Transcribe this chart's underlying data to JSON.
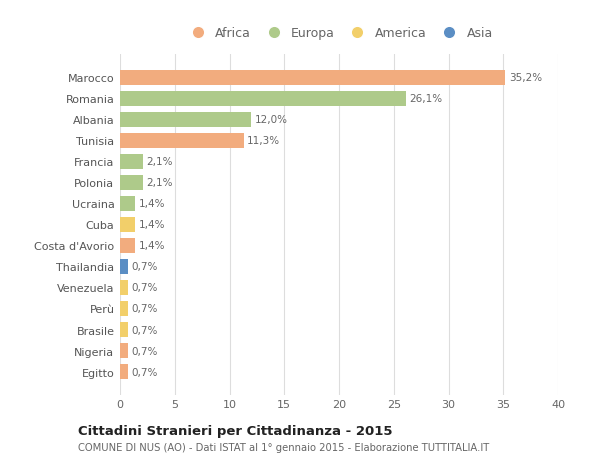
{
  "countries": [
    "Marocco",
    "Romania",
    "Albania",
    "Tunisia",
    "Francia",
    "Polonia",
    "Ucraina",
    "Cuba",
    "Costa d'Avorio",
    "Thailandia",
    "Venezuela",
    "Perù",
    "Brasile",
    "Nigeria",
    "Egitto"
  ],
  "values": [
    35.2,
    26.1,
    12.0,
    11.3,
    2.1,
    2.1,
    1.4,
    1.4,
    1.4,
    0.7,
    0.7,
    0.7,
    0.7,
    0.7,
    0.7
  ],
  "labels": [
    "35,2%",
    "26,1%",
    "12,0%",
    "11,3%",
    "2,1%",
    "2,1%",
    "1,4%",
    "1,4%",
    "1,4%",
    "0,7%",
    "0,7%",
    "0,7%",
    "0,7%",
    "0,7%",
    "0,7%"
  ],
  "continents": [
    "Africa",
    "Europa",
    "Europa",
    "Africa",
    "Europa",
    "Europa",
    "Europa",
    "America",
    "Africa",
    "Asia",
    "America",
    "America",
    "America",
    "Africa",
    "Africa"
  ],
  "colors": {
    "Africa": "#F2AC7E",
    "Europa": "#AECA8A",
    "America": "#F2CF6A",
    "Asia": "#5B8EC4"
  },
  "legend_order": [
    "Africa",
    "Europa",
    "America",
    "Asia"
  ],
  "title": "Cittadini Stranieri per Cittadinanza - 2015",
  "subtitle": "COMUNE DI NUS (AO) - Dati ISTAT al 1° gennaio 2015 - Elaborazione TUTTITALIA.IT",
  "xlim": [
    0,
    40
  ],
  "xticks": [
    0,
    5,
    10,
    15,
    20,
    25,
    30,
    35,
    40
  ],
  "background_color": "#ffffff",
  "grid_color": "#dddddd",
  "bar_height": 0.72
}
